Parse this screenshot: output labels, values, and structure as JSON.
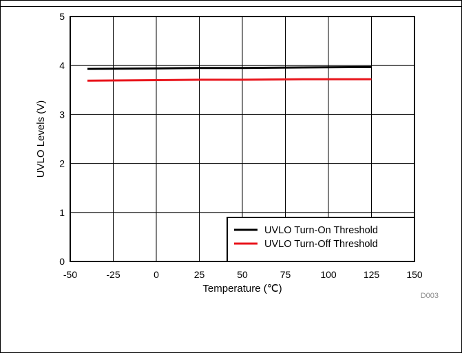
{
  "chart_data": {
    "type": "line",
    "xlabel": "Temperature  (℃)",
    "ylabel": "UVLO Levels  (V)",
    "xlim": [
      -50,
      150
    ],
    "ylim": [
      0,
      5
    ],
    "x_ticks": [
      -50,
      -25,
      0,
      25,
      50,
      75,
      100,
      125,
      150
    ],
    "y_ticks": [
      0,
      1,
      2,
      3,
      4,
      5
    ],
    "x_tick_labels": [
      "-50",
      "-25",
      "0",
      "25",
      "50",
      "75",
      "100",
      "125",
      "150"
    ],
    "y_tick_labels": [
      "0",
      "1",
      "2",
      "3",
      "4",
      "5"
    ],
    "grid": true,
    "legend_position": "bottom-right",
    "series": [
      {
        "name": "UVLO Turn-On Threshold",
        "color": "#000000",
        "x": [
          -40,
          0,
          25,
          50,
          85,
          125
        ],
        "y": [
          3.93,
          3.94,
          3.95,
          3.95,
          3.96,
          3.97
        ]
      },
      {
        "name": "UVLO Turn-Off Threshold",
        "color": "#e8141b",
        "x": [
          -40,
          0,
          25,
          50,
          85,
          125
        ],
        "y": [
          3.69,
          3.7,
          3.71,
          3.71,
          3.72,
          3.72
        ]
      }
    ],
    "figure_code": "D003"
  }
}
